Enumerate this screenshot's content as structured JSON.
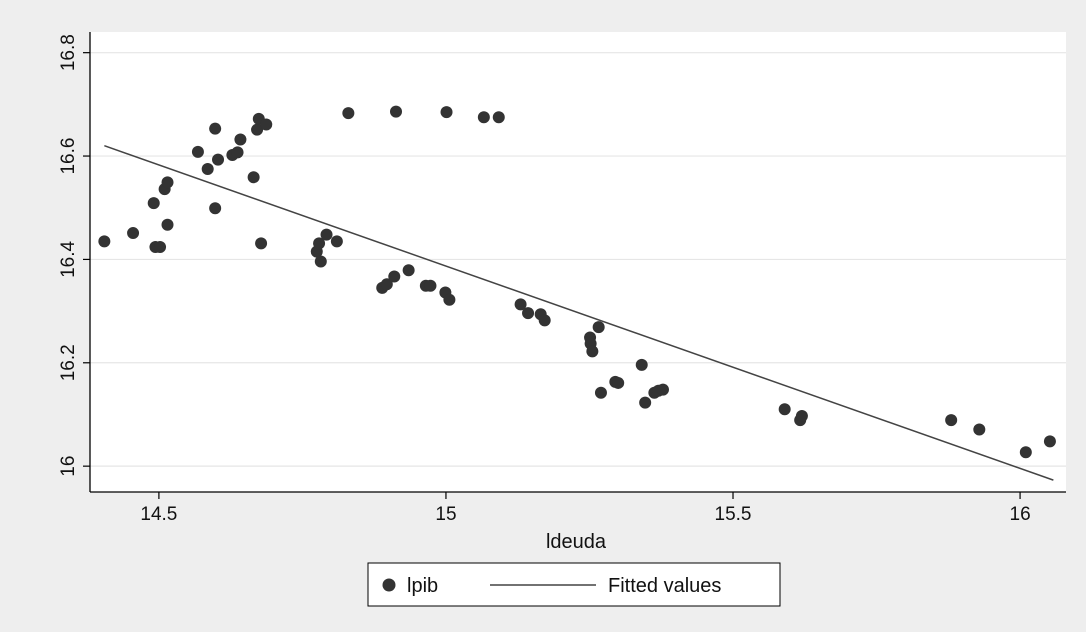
{
  "chart_data": {
    "type": "scatter",
    "title": "",
    "xlabel": "ldeuda",
    "ylabel": "",
    "xlim": [
      14.38,
      16.08
    ],
    "ylim": [
      15.95,
      16.84
    ],
    "x_ticks": [
      {
        "value": 14.5,
        "label": "14.5"
      },
      {
        "value": 15,
        "label": "15"
      },
      {
        "value": 15.5,
        "label": "15.5"
      },
      {
        "value": 16,
        "label": "16"
      }
    ],
    "y_ticks": [
      {
        "value": 16,
        "label": "16"
      },
      {
        "value": 16.2,
        "label": "16.2"
      },
      {
        "value": 16.4,
        "label": "16.4"
      },
      {
        "value": 16.6,
        "label": "16.6"
      },
      {
        "value": 16.8,
        "label": "16.8"
      }
    ],
    "grid": true,
    "legend_position": "bottom-center",
    "colors": {
      "background": "#eeeeee",
      "plot_area": "#ffffff",
      "points": "#333333",
      "line": "#444444",
      "grid": "#e6e6e6"
    },
    "series": [
      {
        "name": "lpib",
        "kind": "scatter",
        "points": [
          [
            14.405,
            16.435
          ],
          [
            14.455,
            16.451
          ],
          [
            14.491,
            16.509
          ],
          [
            14.494,
            16.424
          ],
          [
            14.502,
            16.424
          ],
          [
            14.51,
            16.536
          ],
          [
            14.515,
            16.549
          ],
          [
            14.515,
            16.467
          ],
          [
            14.568,
            16.608
          ],
          [
            14.585,
            16.575
          ],
          [
            14.598,
            16.653
          ],
          [
            14.598,
            16.499
          ],
          [
            14.603,
            16.593
          ],
          [
            14.628,
            16.602
          ],
          [
            14.637,
            16.607
          ],
          [
            14.642,
            16.632
          ],
          [
            14.665,
            16.559
          ],
          [
            14.671,
            16.651
          ],
          [
            14.674,
            16.672
          ],
          [
            14.678,
            16.431
          ],
          [
            14.687,
            16.661
          ],
          [
            14.775,
            16.415
          ],
          [
            14.779,
            16.431
          ],
          [
            14.782,
            16.396
          ],
          [
            14.792,
            16.448
          ],
          [
            14.81,
            16.435
          ],
          [
            14.83,
            16.683
          ],
          [
            14.889,
            16.345
          ],
          [
            14.897,
            16.352
          ],
          [
            14.91,
            16.367
          ],
          [
            14.913,
            16.686
          ],
          [
            14.935,
            16.379
          ],
          [
            14.965,
            16.349
          ],
          [
            14.973,
            16.349
          ],
          [
            14.999,
            16.336
          ],
          [
            15.001,
            16.685
          ],
          [
            15.006,
            16.322
          ],
          [
            15.066,
            16.675
          ],
          [
            15.092,
            16.675
          ],
          [
            15.13,
            16.313
          ],
          [
            15.143,
            16.296
          ],
          [
            15.165,
            16.294
          ],
          [
            15.172,
            16.282
          ],
          [
            15.251,
            16.249
          ],
          [
            15.252,
            16.237
          ],
          [
            15.255,
            16.222
          ],
          [
            15.266,
            16.269
          ],
          [
            15.27,
            16.142
          ],
          [
            15.295,
            16.163
          ],
          [
            15.3,
            16.161
          ],
          [
            15.341,
            16.196
          ],
          [
            15.347,
            16.123
          ],
          [
            15.363,
            16.142
          ],
          [
            15.37,
            16.146
          ],
          [
            15.378,
            16.148
          ],
          [
            15.59,
            16.11
          ],
          [
            15.617,
            16.089
          ],
          [
            15.62,
            16.097
          ],
          [
            15.88,
            16.089
          ],
          [
            15.929,
            16.071
          ],
          [
            16.01,
            16.027
          ],
          [
            16.052,
            16.048
          ]
        ]
      },
      {
        "name": "Fitted values",
        "kind": "line",
        "points": [
          [
            14.405,
            16.62
          ],
          [
            16.058,
            15.973
          ]
        ]
      }
    ]
  }
}
